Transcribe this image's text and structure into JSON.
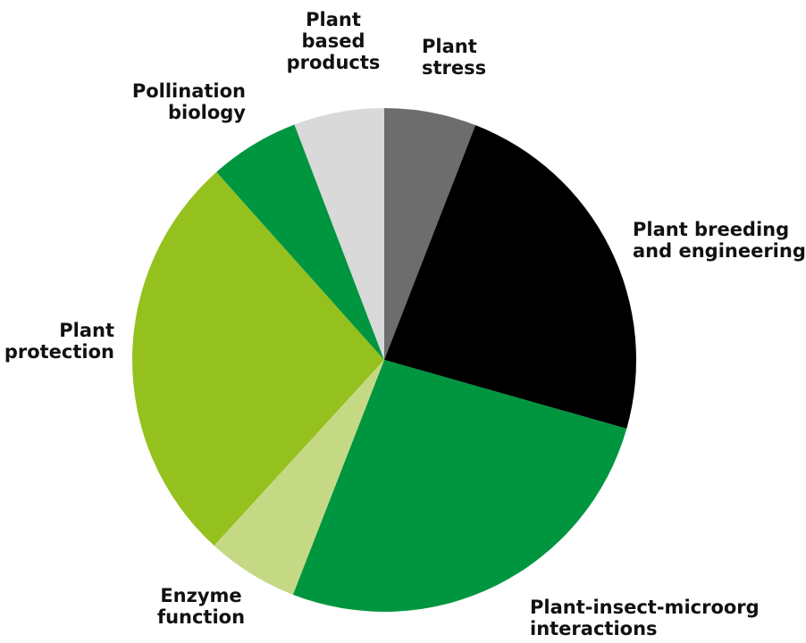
{
  "chart_data": {
    "type": "pie",
    "categories": [
      "Plant\nstress",
      "Plant breeding\nand engineering",
      "Plant-insect-microorg\ninteractions",
      "Enzyme\nfunction",
      "Plant\nprotection",
      "Pollination\nbiology",
      "Plant\nbased\nproducts"
    ],
    "values": [
      5.9,
      23.5,
      26.5,
      5.9,
      26.6,
      5.8,
      5.8
    ],
    "colors": [
      "#6d6d6d",
      "#000000",
      "#009640",
      "#c5d985",
      "#95c11f",
      "#009640",
      "#d9d9d9"
    ]
  }
}
